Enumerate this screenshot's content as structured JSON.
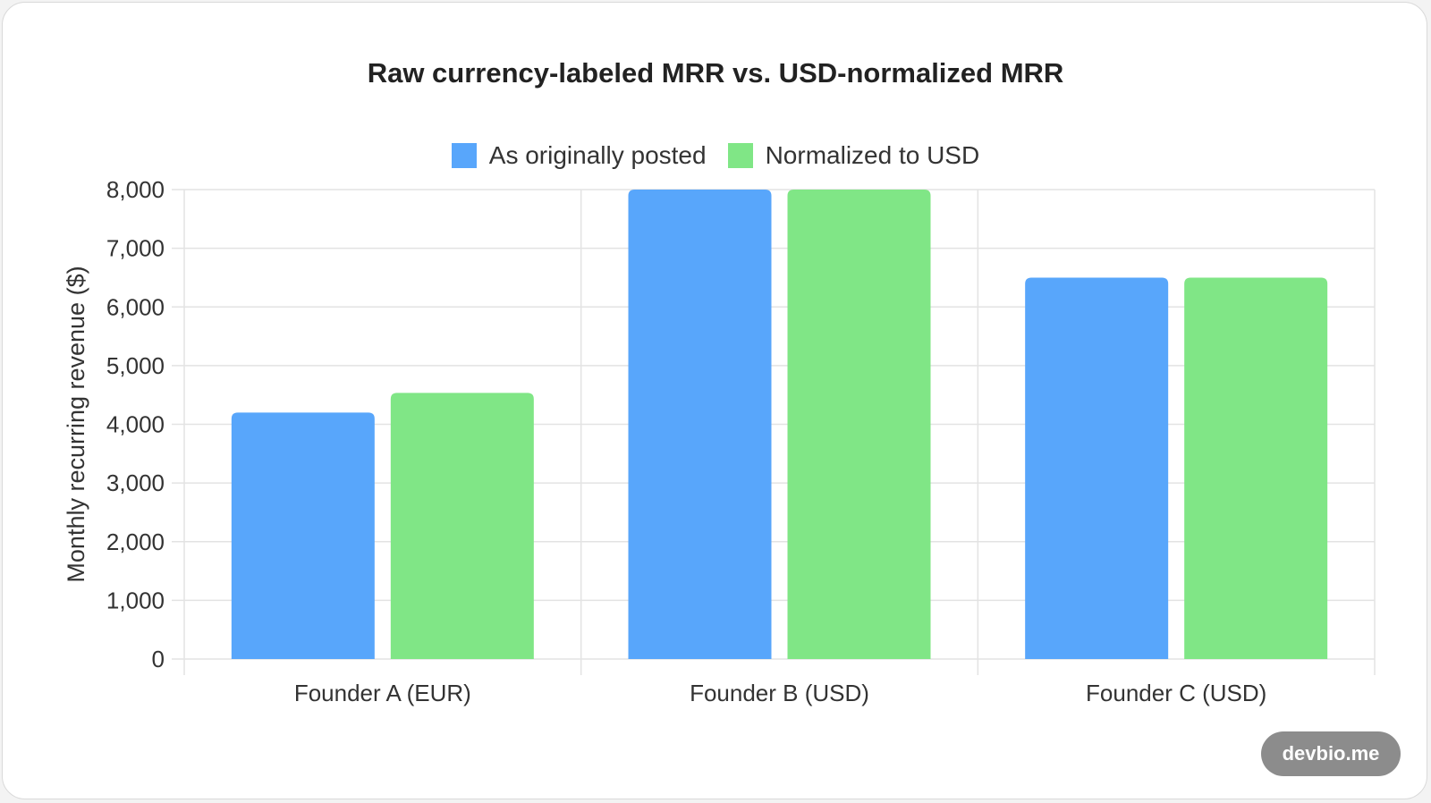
{
  "watermark": "devbio.me",
  "chart_data": {
    "type": "bar",
    "title": "Raw currency-labeled MRR vs. USD-normalized MRR",
    "xlabel": "",
    "ylabel": "Monthly recurring revenue ($)",
    "categories": [
      "Founder A (EUR)",
      "Founder B (USD)",
      "Founder C (USD)"
    ],
    "series": [
      {
        "name": "As originally posted",
        "color": "#58a6fb",
        "values": [
          4200,
          8000,
          6500
        ]
      },
      {
        "name": "Normalized to USD",
        "color": "#80e686",
        "values": [
          4536,
          8000,
          6500
        ]
      }
    ],
    "ylim": [
      0,
      8000
    ],
    "yticks": [
      "0",
      "1,000",
      "2,000",
      "3,000",
      "4,000",
      "5,000",
      "6,000",
      "7,000",
      "8,000"
    ],
    "ytick_values": [
      0,
      1000,
      2000,
      3000,
      4000,
      5000,
      6000,
      7000,
      8000
    ],
    "grid": true,
    "legend_position": "top-center"
  }
}
